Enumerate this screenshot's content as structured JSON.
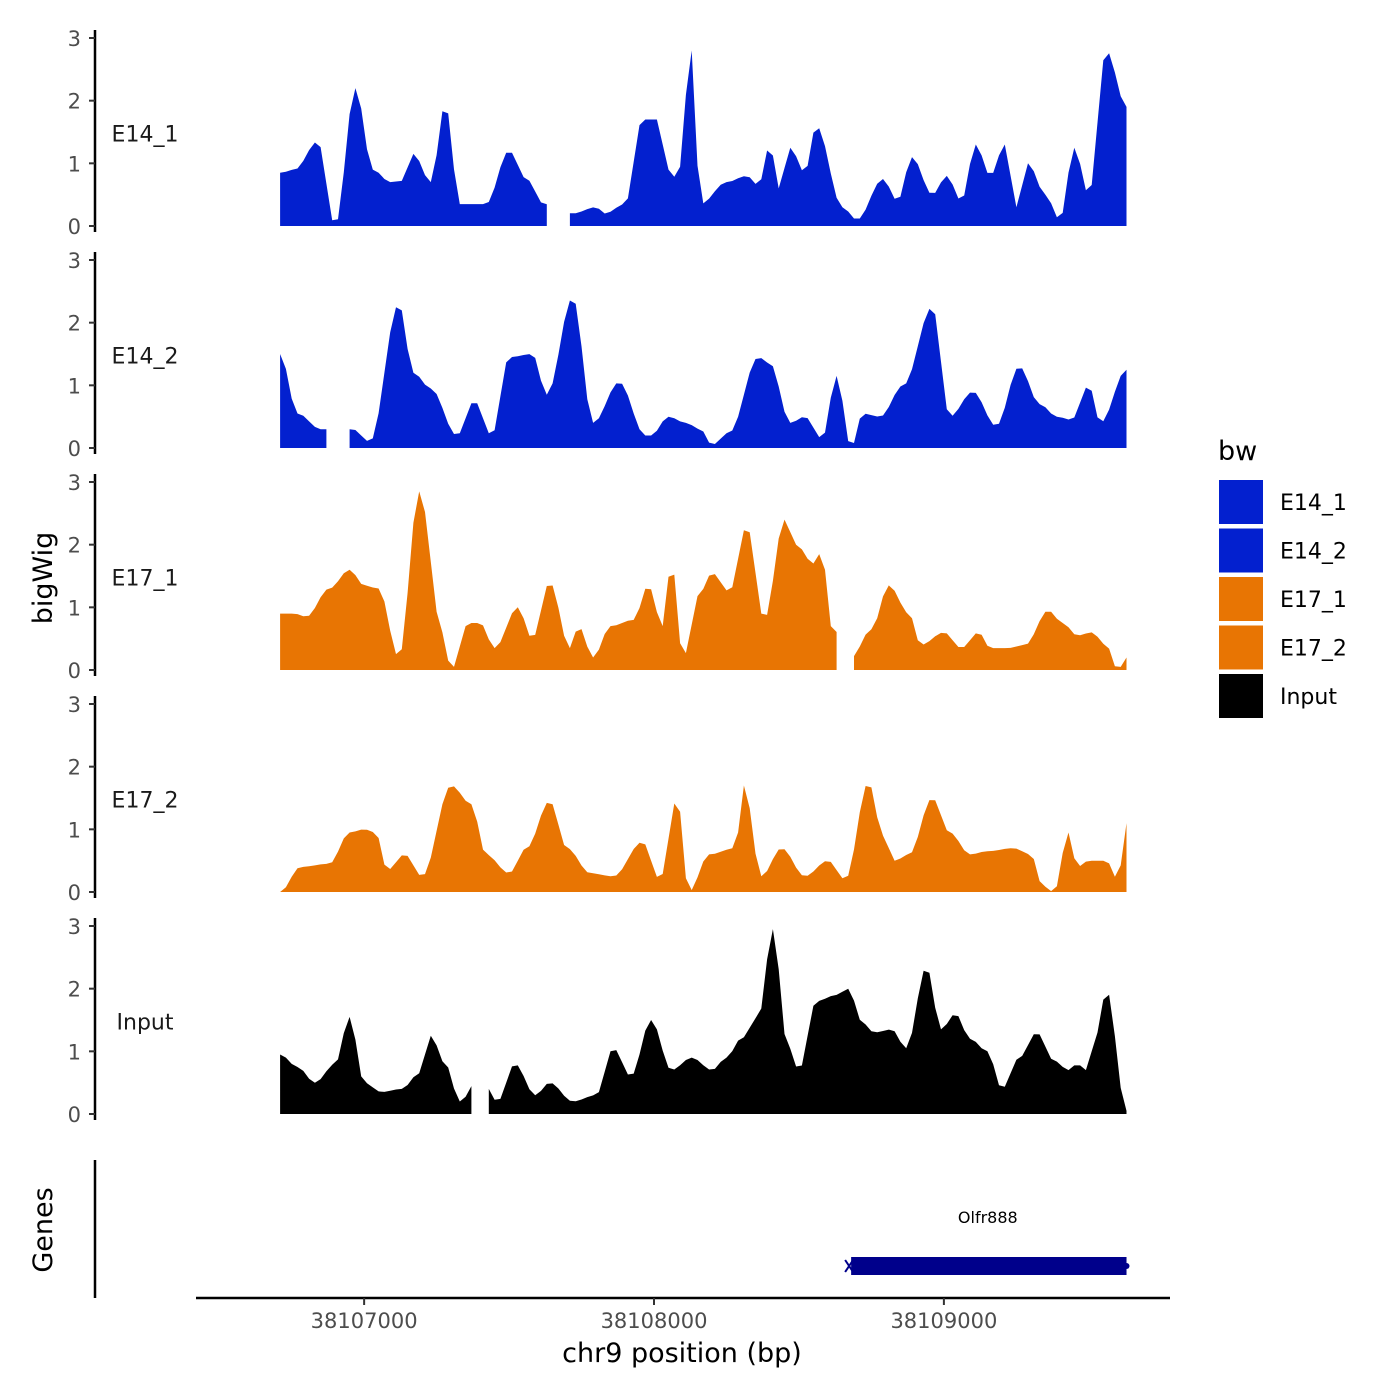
{
  "chart_data": {
    "type": "area",
    "region": {
      "chromosome": "chr9",
      "start": 38106710,
      "end": 38109630
    },
    "xlabel": "chr9 position (bp)",
    "ylabel": "bigWig",
    "xlim": [
      38106420,
      38109780
    ],
    "x_ticks": [
      38107000,
      38108000,
      38109000
    ],
    "x_tick_labels": [
      "38107000",
      "38108000",
      "38109000"
    ],
    "ylim": [
      0,
      3
    ],
    "y_ticks": [
      0,
      1,
      2,
      3
    ],
    "y_tick_labels": [
      "0",
      "1",
      "2",
      "3"
    ],
    "bin_size_bp": 20,
    "series": [
      {
        "name": "E14_1",
        "color": "#0320CF",
        "gap": [
          38107640,
          38107700
        ],
        "peaks": [
          [
            38106710,
            0.85
          ],
          [
            38106760,
            0.9
          ],
          [
            38106840,
            1.35
          ],
          [
            38106900,
            0.0
          ],
          [
            38106970,
            2.2
          ],
          [
            38107030,
            0.9
          ],
          [
            38107090,
            0.7
          ],
          [
            38107130,
            0.72
          ],
          [
            38107170,
            1.15
          ],
          [
            38107230,
            0.7
          ],
          [
            38107280,
            1.95
          ],
          [
            38107330,
            0.35
          ],
          [
            38107380,
            0.35
          ],
          [
            38107420,
            0.35
          ],
          [
            38107500,
            1.2
          ],
          [
            38107560,
            0.75
          ],
          [
            38107620,
            0.35
          ],
          [
            38107720,
            0.2
          ],
          [
            38107800,
            0.3
          ],
          [
            38107830,
            0.2
          ],
          [
            38107900,
            0.35
          ],
          [
            38107960,
            1.7
          ],
          [
            38108010,
            1.7
          ],
          [
            38108050,
            0.9
          ],
          [
            38108080,
            0.75
          ],
          [
            38108130,
            2.8
          ],
          [
            38108160,
            0.35
          ],
          [
            38108250,
            0.7
          ],
          [
            38108320,
            0.8
          ],
          [
            38108360,
            0.65
          ],
          [
            38108400,
            1.3
          ],
          [
            38108430,
            0.6
          ],
          [
            38108470,
            1.25
          ],
          [
            38108520,
            0.85
          ],
          [
            38108560,
            1.6
          ],
          [
            38108650,
            0.3
          ],
          [
            38108700,
            0.1
          ],
          [
            38108790,
            0.75
          ],
          [
            38108840,
            0.4
          ],
          [
            38108890,
            1.1
          ],
          [
            38108960,
            0.5
          ],
          [
            38109010,
            0.8
          ],
          [
            38109060,
            0.4
          ],
          [
            38109110,
            1.3
          ],
          [
            38109160,
            0.8
          ],
          [
            38109210,
            1.3
          ],
          [
            38109250,
            0.3
          ],
          [
            38109290,
            1.0
          ],
          [
            38109350,
            0.5
          ],
          [
            38109400,
            0.1
          ],
          [
            38109450,
            1.25
          ],
          [
            38109500,
            0.5
          ],
          [
            38109560,
            2.8
          ],
          [
            38109630,
            1.9
          ]
        ]
      },
      {
        "name": "E14_2",
        "color": "#0320CF",
        "gap": [
          38106870,
          38106940
        ],
        "peaks": [
          [
            38106710,
            1.5
          ],
          [
            38106770,
            0.55
          ],
          [
            38106850,
            0.3
          ],
          [
            38106960,
            0.3
          ],
          [
            38107020,
            0.1
          ],
          [
            38107120,
            2.3
          ],
          [
            38107170,
            1.2
          ],
          [
            38107230,
            0.95
          ],
          [
            38107320,
            0.2
          ],
          [
            38107380,
            0.75
          ],
          [
            38107440,
            0.2
          ],
          [
            38107500,
            1.45
          ],
          [
            38107580,
            1.5
          ],
          [
            38107630,
            0.85
          ],
          [
            38107720,
            2.4
          ],
          [
            38107790,
            0.4
          ],
          [
            38107880,
            1.05
          ],
          [
            38107970,
            0.2
          ],
          [
            38107990,
            0.2
          ],
          [
            38108050,
            0.5
          ],
          [
            38108110,
            0.4
          ],
          [
            38108160,
            0.3
          ],
          [
            38108200,
            0.05
          ],
          [
            38108260,
            0.25
          ],
          [
            38108360,
            1.45
          ],
          [
            38108400,
            1.35
          ],
          [
            38108470,
            0.4
          ],
          [
            38108520,
            0.5
          ],
          [
            38108580,
            0.15
          ],
          [
            38108630,
            1.15
          ],
          [
            38108680,
            0.0
          ],
          [
            38108720,
            0.55
          ],
          [
            38108780,
            0.5
          ],
          [
            38108860,
            1.0
          ],
          [
            38108960,
            2.25
          ],
          [
            38109020,
            0.5
          ],
          [
            38109100,
            0.9
          ],
          [
            38109180,
            0.35
          ],
          [
            38109260,
            1.3
          ],
          [
            38109330,
            0.7
          ],
          [
            38109390,
            0.5
          ],
          [
            38109440,
            0.45
          ],
          [
            38109500,
            1.0
          ],
          [
            38109540,
            0.4
          ],
          [
            38109630,
            1.25
          ]
        ]
      },
      {
        "name": "E17_1",
        "color": "#E87503",
        "gap": [
          38108640,
          38108680
        ],
        "peaks": [
          [
            38106710,
            0.9
          ],
          [
            38106760,
            0.9
          ],
          [
            38106800,
            0.85
          ],
          [
            38106880,
            1.3
          ],
          [
            38106950,
            1.6
          ],
          [
            38107000,
            1.35
          ],
          [
            38107050,
            1.3
          ],
          [
            38107120,
            0.2
          ],
          [
            38107190,
            2.85
          ],
          [
            38107270,
            0.6
          ],
          [
            38107300,
            0.0
          ],
          [
            38107360,
            0.75
          ],
          [
            38107400,
            0.75
          ],
          [
            38107450,
            0.35
          ],
          [
            38107530,
            1.0
          ],
          [
            38107580,
            0.5
          ],
          [
            38107640,
            1.4
          ],
          [
            38107710,
            0.35
          ],
          [
            38107740,
            0.7
          ],
          [
            38107790,
            0.2
          ],
          [
            38107850,
            0.7
          ],
          [
            38107930,
            0.8
          ],
          [
            38107980,
            1.35
          ],
          [
            38108030,
            0.7
          ],
          [
            38108060,
            1.75
          ],
          [
            38108100,
            0.2
          ],
          [
            38108160,
            1.25
          ],
          [
            38108200,
            1.55
          ],
          [
            38108260,
            1.25
          ],
          [
            38108320,
            2.3
          ],
          [
            38108380,
            0.8
          ],
          [
            38108450,
            2.4
          ],
          [
            38108490,
            2.0
          ],
          [
            38108550,
            1.7
          ],
          [
            38108580,
            1.9
          ],
          [
            38108610,
            0.7
          ],
          [
            38108680,
            0.2
          ],
          [
            38108750,
            0.65
          ],
          [
            38108810,
            1.35
          ],
          [
            38108880,
            0.9
          ],
          [
            38108920,
            0.4
          ],
          [
            38109000,
            0.6
          ],
          [
            38109060,
            0.35
          ],
          [
            38109120,
            0.6
          ],
          [
            38109160,
            0.35
          ],
          [
            38109220,
            0.35
          ],
          [
            38109280,
            0.4
          ],
          [
            38109360,
            0.95
          ],
          [
            38109410,
            0.75
          ],
          [
            38109460,
            0.55
          ],
          [
            38109510,
            0.6
          ],
          [
            38109560,
            0.4
          ],
          [
            38109600,
            0.0
          ],
          [
            38109630,
            0.2
          ]
        ]
      },
      {
        "name": "E17_2",
        "color": "#E87503",
        "gap": [],
        "peaks": [
          [
            38106710,
            0.0
          ],
          [
            38106780,
            0.4
          ],
          [
            38106880,
            0.45
          ],
          [
            38106950,
            0.95
          ],
          [
            38107000,
            1.0
          ],
          [
            38107040,
            0.95
          ],
          [
            38107080,
            0.35
          ],
          [
            38107140,
            0.6
          ],
          [
            38107200,
            0.25
          ],
          [
            38107300,
            1.7
          ],
          [
            38107370,
            1.4
          ],
          [
            38107420,
            0.6
          ],
          [
            38107500,
            0.3
          ],
          [
            38107560,
            0.7
          ],
          [
            38107640,
            1.45
          ],
          [
            38107700,
            0.7
          ],
          [
            38107780,
            0.3
          ],
          [
            38107860,
            0.25
          ],
          [
            38107960,
            0.8
          ],
          [
            38108020,
            0.2
          ],
          [
            38108080,
            1.5
          ],
          [
            38108120,
            0.0
          ],
          [
            38108190,
            0.6
          ],
          [
            38108280,
            0.7
          ],
          [
            38108310,
            1.7
          ],
          [
            38108370,
            0.25
          ],
          [
            38108440,
            0.7
          ],
          [
            38108520,
            0.25
          ],
          [
            38108600,
            0.5
          ],
          [
            38108660,
            0.2
          ],
          [
            38108740,
            1.75
          ],
          [
            38108790,
            0.9
          ],
          [
            38108830,
            0.5
          ],
          [
            38108880,
            0.6
          ],
          [
            38108960,
            1.5
          ],
          [
            38109020,
            0.95
          ],
          [
            38109090,
            0.6
          ],
          [
            38109150,
            0.65
          ],
          [
            38109240,
            0.7
          ],
          [
            38109300,
            0.6
          ],
          [
            38109340,
            0.1
          ],
          [
            38109380,
            0.0
          ],
          [
            38109430,
            0.95
          ],
          [
            38109460,
            0.4
          ],
          [
            38109500,
            0.5
          ],
          [
            38109560,
            0.5
          ],
          [
            38109600,
            0.2
          ],
          [
            38109630,
            1.1
          ]
        ]
      },
      {
        "name": "Input",
        "color": "#000000",
        "gap": [
          38107380,
          38107420
        ],
        "peaks": [
          [
            38106710,
            0.95
          ],
          [
            38106770,
            0.75
          ],
          [
            38106830,
            0.5
          ],
          [
            38106900,
            0.8
          ],
          [
            38106950,
            1.55
          ],
          [
            38107000,
            0.5
          ],
          [
            38107060,
            0.35
          ],
          [
            38107130,
            0.4
          ],
          [
            38107190,
            0.65
          ],
          [
            38107230,
            1.25
          ],
          [
            38107280,
            0.8
          ],
          [
            38107330,
            0.2
          ],
          [
            38107400,
            0.6
          ],
          [
            38107460,
            0.2
          ],
          [
            38107520,
            0.8
          ],
          [
            38107590,
            0.3
          ],
          [
            38107640,
            0.5
          ],
          [
            38107720,
            0.2
          ],
          [
            38107800,
            0.3
          ],
          [
            38107860,
            1.05
          ],
          [
            38107920,
            0.6
          ],
          [
            38107990,
            1.5
          ],
          [
            38108060,
            0.7
          ],
          [
            38108130,
            0.9
          ],
          [
            38108200,
            0.7
          ],
          [
            38108250,
            0.9
          ],
          [
            38108300,
            1.2
          ],
          [
            38108360,
            1.55
          ],
          [
            38108410,
            2.95
          ],
          [
            38108460,
            1.1
          ],
          [
            38108500,
            0.7
          ],
          [
            38108560,
            1.8
          ],
          [
            38108630,
            1.9
          ],
          [
            38108670,
            2.0
          ],
          [
            38108720,
            1.45
          ],
          [
            38108760,
            1.3
          ],
          [
            38108820,
            1.35
          ],
          [
            38108870,
            1.05
          ],
          [
            38108940,
            2.35
          ],
          [
            38108990,
            1.35
          ],
          [
            38109040,
            1.6
          ],
          [
            38109090,
            1.2
          ],
          [
            38109150,
            1.0
          ],
          [
            38109200,
            0.4
          ],
          [
            38109260,
            0.9
          ],
          [
            38109320,
            1.3
          ],
          [
            38109380,
            0.85
          ],
          [
            38109430,
            0.7
          ],
          [
            38109460,
            0.8
          ],
          [
            38109490,
            0.7
          ],
          [
            38109530,
            1.3
          ],
          [
            38109560,
            2.0
          ],
          [
            38109630,
            0.05
          ]
        ]
      }
    ],
    "gene_track": {
      "title": "Genes",
      "genes": [
        {
          "name": "Olfr888",
          "start": 38108680,
          "end": 38109630,
          "strand": "+",
          "color": "#00008B"
        }
      ]
    },
    "legend": {
      "title": "bw",
      "position": "right",
      "entries": [
        {
          "label": "E14_1",
          "color": "#0320CF"
        },
        {
          "label": "E14_2",
          "color": "#0320CF"
        },
        {
          "label": "E17_1",
          "color": "#E87503"
        },
        {
          "label": "E17_2",
          "color": "#E87503"
        },
        {
          "label": "Input",
          "color": "#000000"
        }
      ]
    }
  }
}
